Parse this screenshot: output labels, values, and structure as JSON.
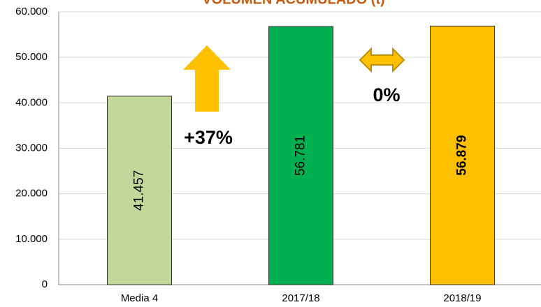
{
  "chart_data": {
    "type": "bar",
    "title": "VOLUMEN ACUMULADO (t)",
    "categories": [
      "Media 4",
      "2017/18",
      "2018/19"
    ],
    "values": [
      41457,
      56781,
      56879
    ],
    "value_labels": [
      "41.457",
      "56.781",
      "56.879"
    ],
    "colors": [
      "#c4d79b",
      "#00b050",
      "#ffc000"
    ],
    "ylim": [
      0,
      60000
    ],
    "yticks": [
      0,
      {
        "value": 10000,
        "label": "10.000"
      },
      {
        "value": 20000,
        "label": "20.000"
      },
      {
        "value": 30000,
        "label": "30.000"
      },
      {
        "value": 40000,
        "label": "40.000"
      },
      {
        "value": 50000,
        "label": "50.000"
      },
      {
        "value": 60000,
        "label": "60.000"
      }
    ],
    "grid": true,
    "annotations": [
      "+37%",
      "0%"
    ]
  }
}
